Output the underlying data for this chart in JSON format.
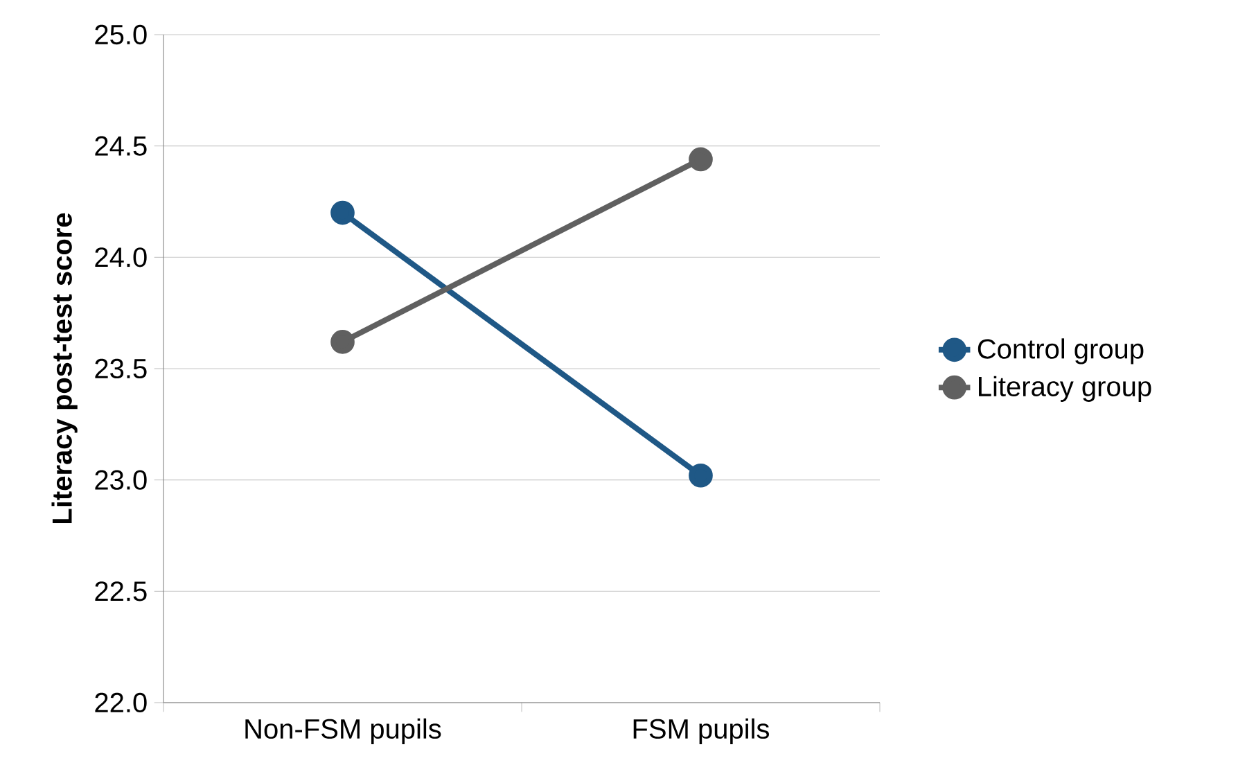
{
  "chart_data": {
    "type": "line",
    "ylabel": "Literacy post-test  score",
    "categories": [
      "Non-FSM pupils",
      "FSM pupils"
    ],
    "series": [
      {
        "name": "Control group",
        "color": "#1f5886",
        "values": [
          24.2,
          23.02
        ]
      },
      {
        "name": "Literacy group",
        "color": "#606060",
        "values": [
          23.62,
          24.44
        ]
      }
    ],
    "ylim": [
      22,
      25
    ],
    "yticks": [
      {
        "value": 22,
        "label": "22.0"
      },
      {
        "value": 22.5,
        "label": "22.5"
      },
      {
        "value": 23,
        "label": "23.0"
      },
      {
        "value": 23.5,
        "label": "23.5"
      },
      {
        "value": 24,
        "label": "24.0"
      },
      {
        "value": 24.5,
        "label": "24.5"
      },
      {
        "value": 25,
        "label": "25.0"
      }
    ],
    "grid": "y",
    "legend": "right",
    "marker": "circle",
    "line_style": "solid"
  }
}
